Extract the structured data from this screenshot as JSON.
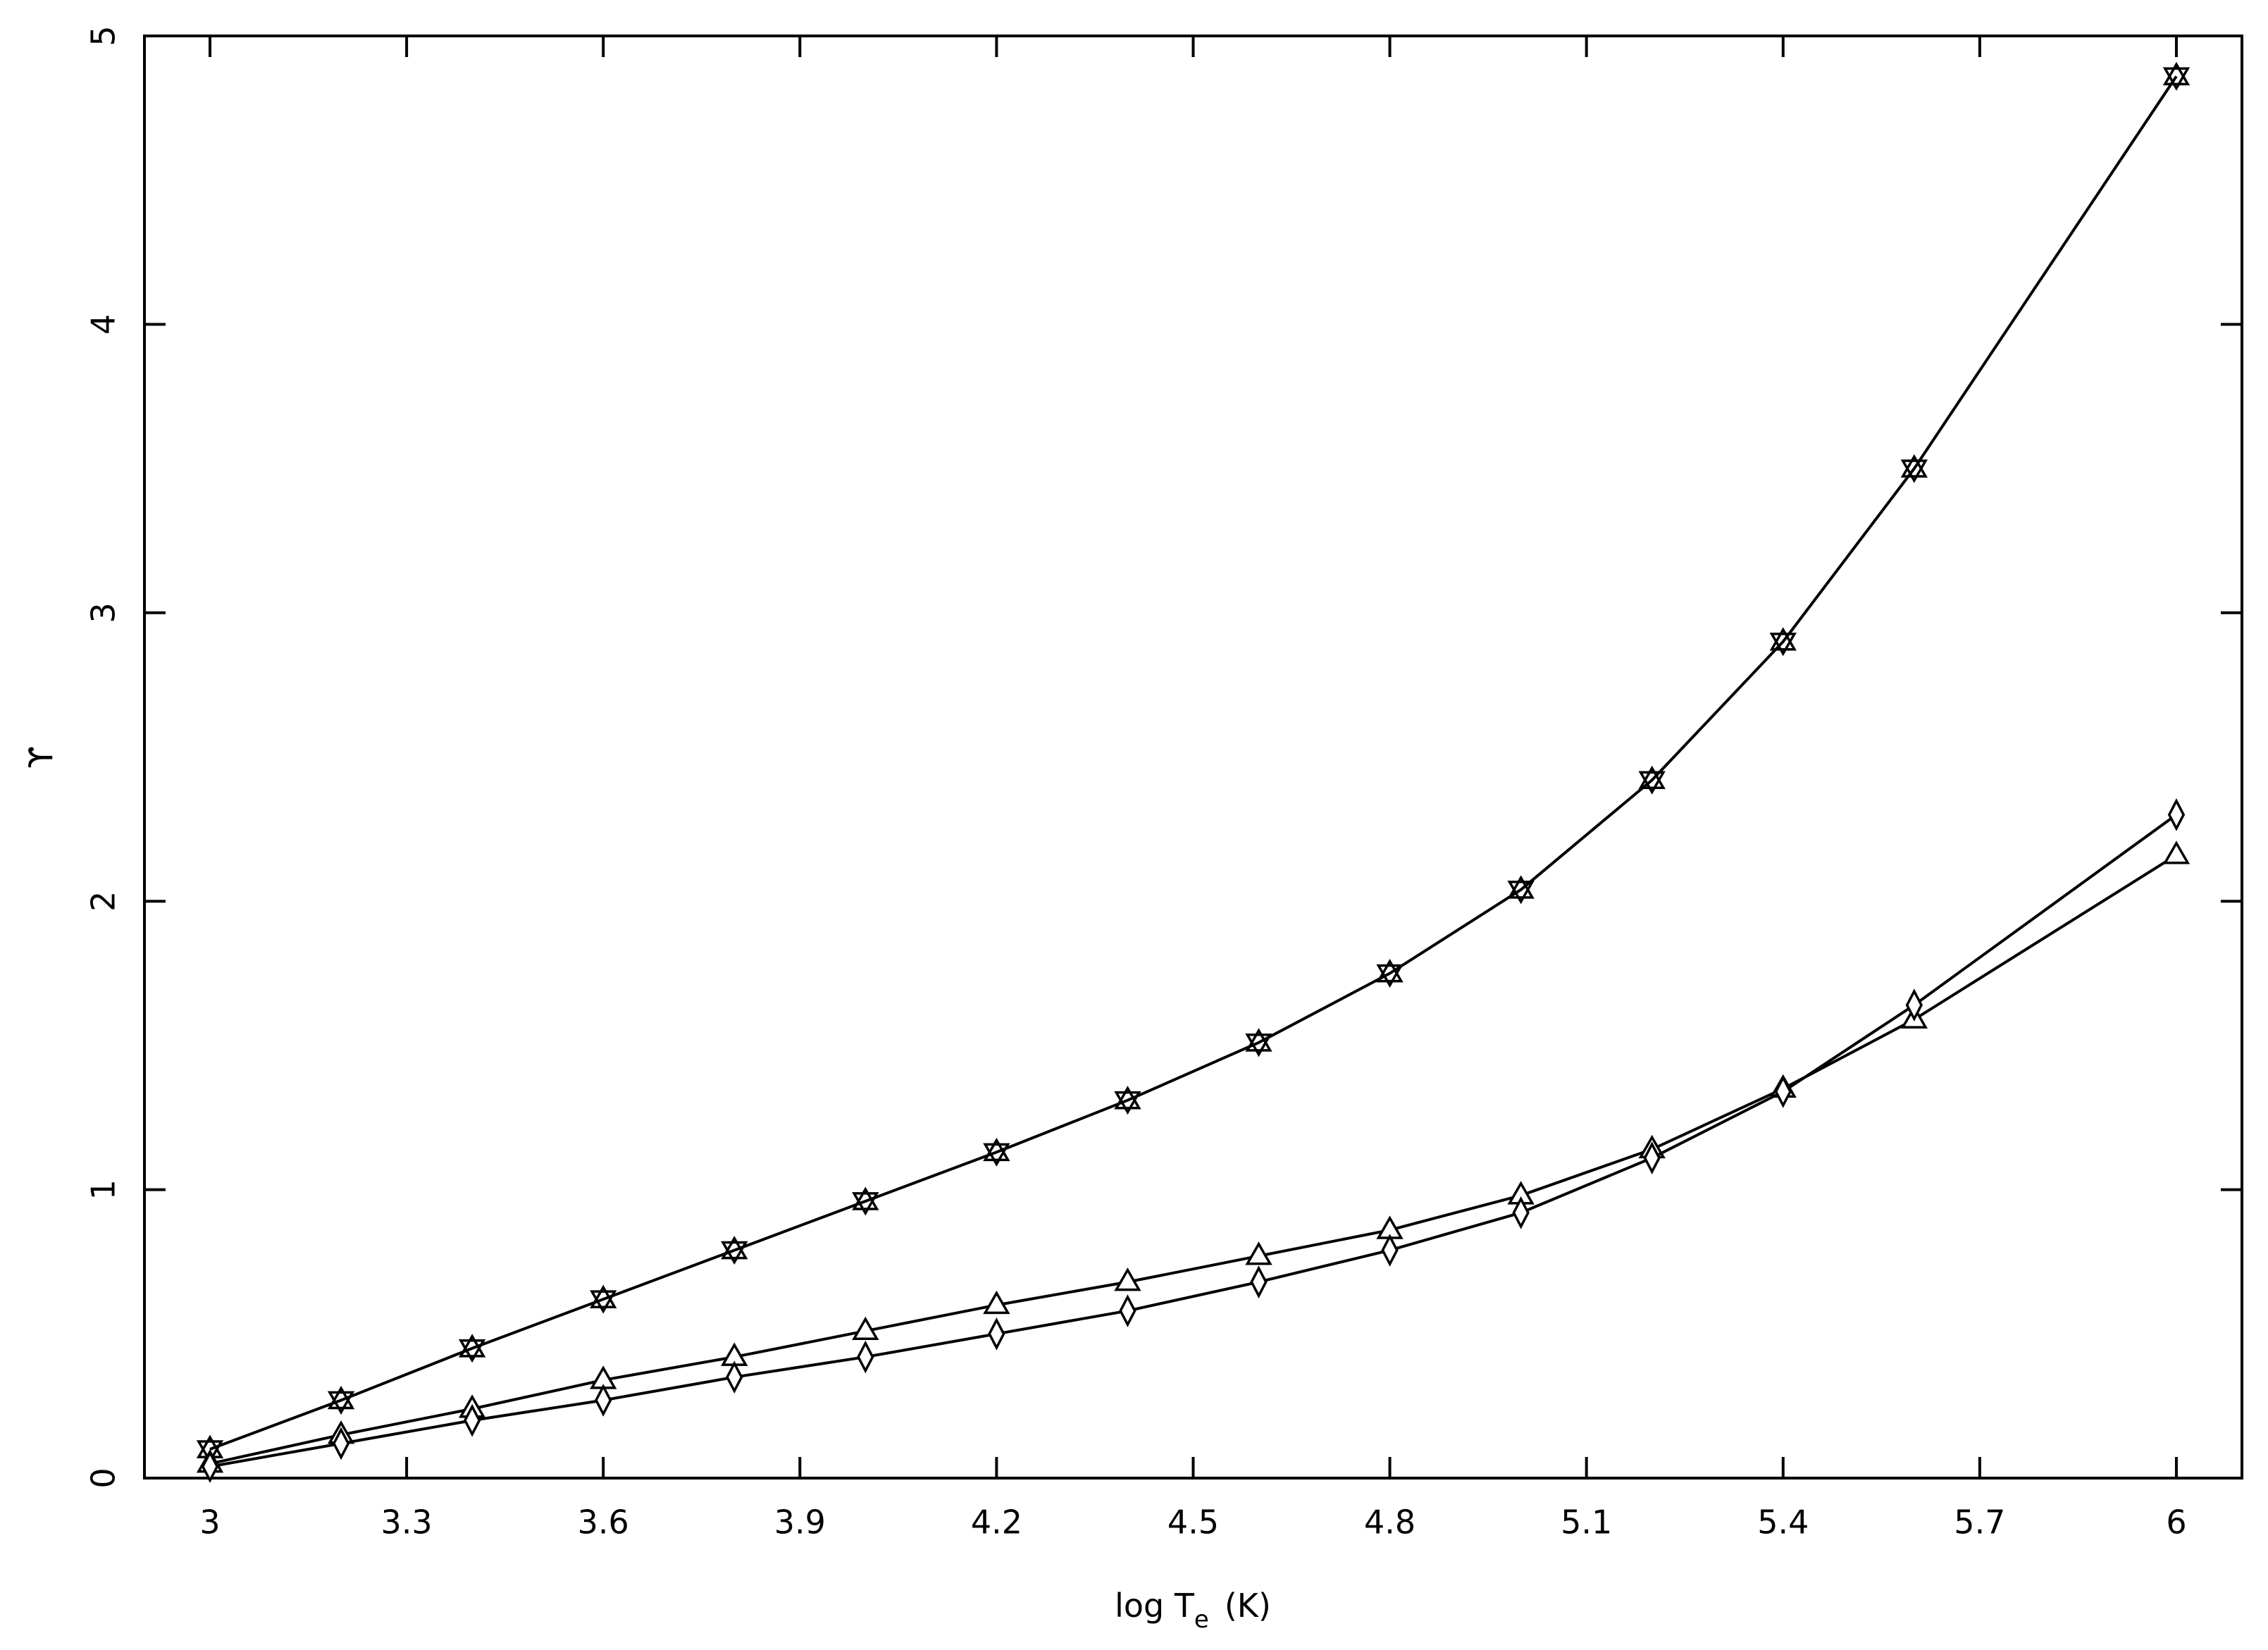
{
  "chart_data": {
    "type": "line",
    "xlabel": {
      "main": "log T",
      "sub": "e",
      "unit": "(K)"
    },
    "ylabel": "ϒ",
    "x": [
      3.0,
      3.2,
      3.4,
      3.6,
      3.8,
      4.0,
      4.2,
      4.4,
      4.6,
      4.8,
      5.0,
      5.2,
      5.4,
      5.6,
      6.0
    ],
    "series": [
      {
        "color": "#000000",
        "marker": "star",
        "values": [
          0.1,
          0.27,
          0.45,
          0.62,
          0.79,
          0.96,
          1.13,
          1.31,
          1.51,
          1.75,
          2.04,
          2.42,
          2.9,
          3.5,
          4.86
        ]
      },
      {
        "color": "#000000",
        "marker": "triangle",
        "values": [
          0.05,
          0.15,
          0.24,
          0.34,
          0.42,
          0.51,
          0.6,
          0.68,
          0.77,
          0.86,
          0.98,
          1.14,
          1.35,
          1.59,
          2.16
        ]
      },
      {
        "color": "#000000",
        "marker": "diamond",
        "values": [
          0.04,
          0.12,
          0.2,
          0.27,
          0.35,
          0.42,
          0.5,
          0.58,
          0.68,
          0.79,
          0.92,
          1.11,
          1.34,
          1.64,
          2.3
        ]
      }
    ],
    "xlim": [
      2.9,
      6.1
    ],
    "xticks": [
      3,
      3.3,
      3.6,
      3.9,
      4.2,
      4.5,
      4.8,
      5.1,
      5.4,
      5.7,
      6
    ],
    "ylim": [
      0,
      5
    ],
    "yticks": [
      0,
      1,
      2,
      3,
      4,
      5
    ],
    "grid": false
  }
}
